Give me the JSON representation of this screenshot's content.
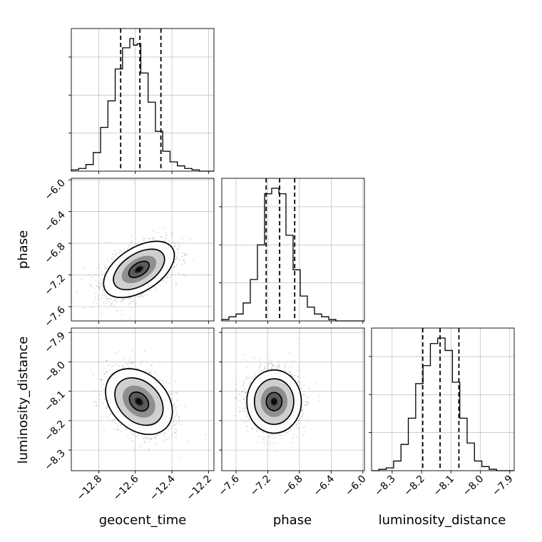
{
  "chart_data": {
    "type": "corner",
    "parameters": [
      "geocent_time",
      "phase",
      "luminosity_distance"
    ],
    "axis_labels": {
      "x": [
        "geocent_time",
        "phase",
        "luminosity_distance"
      ],
      "y": [
        "phase",
        "luminosity_distance"
      ]
    },
    "ranges": [
      [
        -12.95,
        -12.17
      ],
      [
        -7.78,
        -5.98
      ],
      [
        -8.37,
        -7.885
      ]
    ],
    "ticks": {
      "geocent_time": [
        -12.8,
        -12.6,
        -12.4,
        -12.2
      ],
      "phase": [
        -7.6,
        -7.2,
        -6.8,
        -6.4,
        -6.0
      ],
      "luminosity_distance": [
        -8.3,
        -8.2,
        -8.1,
        -8.0,
        -7.9
      ]
    },
    "tick_labels": {
      "geocent_time": [
        "−12.8",
        "−12.6",
        "−12.4",
        "−12.2"
      ],
      "phase": [
        "−7.6",
        "−7.2",
        "−6.8",
        "−6.4",
        "−6.0"
      ],
      "luminosity_distance": [
        "−8.3",
        "−8.2",
        "−8.1",
        "−8.0",
        "−7.9"
      ]
    },
    "quantiles": {
      "geocent_time": [
        -12.68,
        -12.575,
        -12.46
      ],
      "phase": [
        -7.22,
        -7.05,
        -6.86
      ],
      "luminosity_distance": [
        -8.196,
        -8.137,
        -8.073
      ]
    },
    "histograms": {
      "geocent_time": {
        "bin_edges": [
          -12.95,
          -12.91,
          -12.87,
          -12.83,
          -12.79,
          -12.75,
          -12.71,
          -12.67,
          -12.63,
          -12.61,
          -12.59,
          -12.57,
          -12.53,
          -12.49,
          -12.45,
          -12.41,
          -12.37,
          -12.33,
          -12.29,
          -12.25,
          -12.21,
          -12.17
        ],
        "counts": [
          0.01,
          0.02,
          0.05,
          0.14,
          0.33,
          0.53,
          0.77,
          0.93,
          1.0,
          0.95,
          0.96,
          0.74,
          0.52,
          0.3,
          0.15,
          0.07,
          0.04,
          0.02,
          0.01,
          0.0,
          0.0
        ]
      },
      "phase": {
        "bin_edges": [
          -7.78,
          -7.69,
          -7.6,
          -7.51,
          -7.42,
          -7.33,
          -7.24,
          -7.15,
          -7.06,
          -6.97,
          -6.88,
          -6.79,
          -6.7,
          -6.61,
          -6.52,
          -6.43,
          -6.34,
          -6.25,
          -6.16,
          -6.07,
          -5.98
        ],
        "counts": [
          0.01,
          0.03,
          0.05,
          0.13,
          0.3,
          0.55,
          0.92,
          0.96,
          0.92,
          0.62,
          0.37,
          0.18,
          0.1,
          0.05,
          0.03,
          0.01,
          0.0,
          0.0,
          0.0,
          0.0
        ]
      },
      "luminosity_distance": {
        "bin_edges": [
          -8.37,
          -8.345,
          -8.32,
          -8.295,
          -8.27,
          -8.245,
          -8.22,
          -8.195,
          -8.17,
          -8.145,
          -8.12,
          -8.095,
          -8.07,
          -8.045,
          -8.02,
          -7.995,
          -7.97,
          -7.945,
          -7.92,
          -7.885
        ],
        "counts": [
          0.0,
          0.01,
          0.02,
          0.07,
          0.19,
          0.38,
          0.63,
          0.76,
          0.92,
          0.96,
          0.87,
          0.64,
          0.38,
          0.2,
          0.07,
          0.03,
          0.01,
          0.0,
          0.0
        ]
      }
    },
    "scatter_panels": [
      {
        "x": "geocent_time",
        "y": "phase",
        "center": [
          -12.58,
          -7.13
        ],
        "sd": [
          0.09,
          0.165
        ],
        "correlation": 0.5
      },
      {
        "x": "geocent_time",
        "y": "luminosity_distance",
        "center": [
          -12.58,
          -8.135
        ],
        "sd": [
          0.085,
          0.052
        ],
        "correlation": -0.3
      },
      {
        "x": "phase",
        "y": "luminosity_distance",
        "center": [
          -7.12,
          -8.135
        ],
        "sd": [
          0.16,
          0.05
        ],
        "correlation": 0.0
      }
    ],
    "grid": true,
    "colors": {
      "lines": "#000000",
      "points": "#808080",
      "grid": "#b0b0b0",
      "density_dark": "#111111"
    }
  }
}
